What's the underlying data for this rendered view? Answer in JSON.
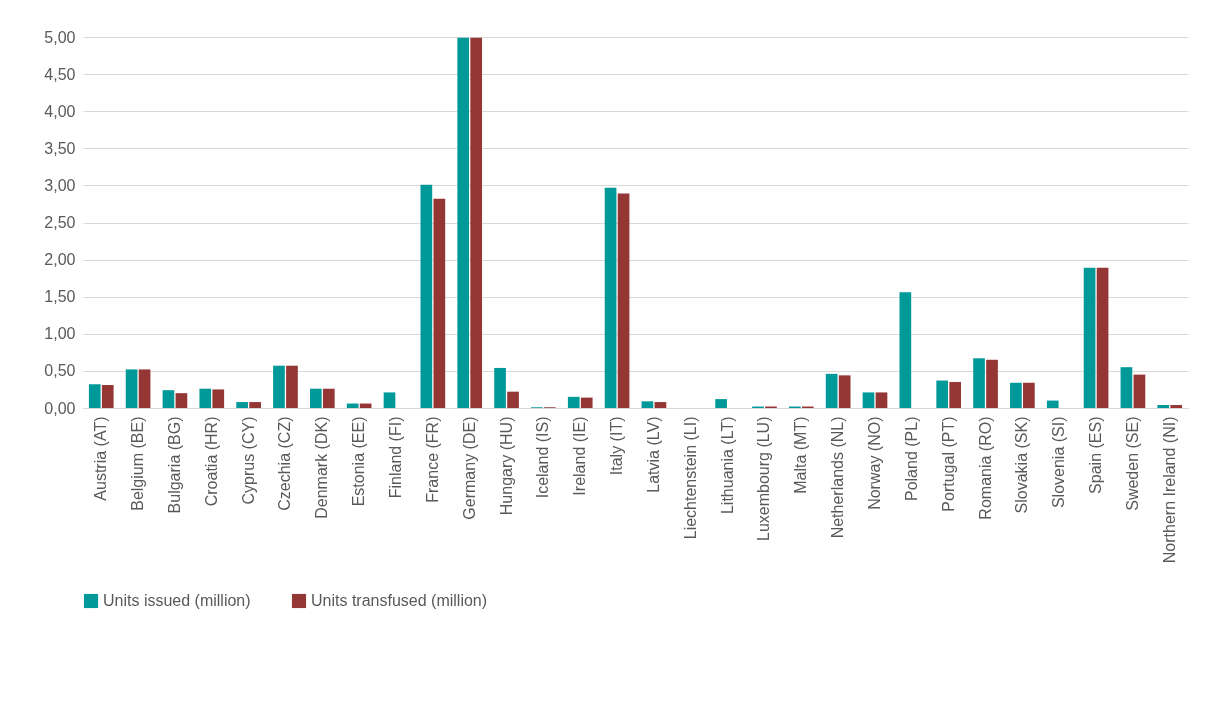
{
  "chart_data": {
    "type": "bar",
    "categories": [
      "Austria (AT)",
      "Belgium (BE)",
      "Bulgaria (BG)",
      "Croatia (HR)",
      "Cyprus (CY)",
      "Czechia (CZ)",
      "Denmark (DK)",
      "Estonia (EE)",
      "Finland (FI)",
      "France (FR)",
      "Germany (DE)",
      "Hungary (HU)",
      "Iceland (IS)",
      "Ireland (IE)",
      "Italy (IT)",
      "Latvia (LV)",
      "Liechtenstein (LI)",
      "Lithuania (LT)",
      "Luxembourg (LU)",
      "Malta (MT)",
      "Netherlands (NL)",
      "Norway (NO)",
      "Poland (PL)",
      "Portugal (PT)",
      "Romania (RO)",
      "Slovakia (SK)",
      "Slovenia (SI)",
      "Spain (ES)",
      "Sweden (SE)",
      "Northern Ireland (NI)"
    ],
    "series": [
      {
        "name": "Units issued (million)",
        "color": "#009999",
        "values": [
          0.32,
          0.52,
          0.24,
          0.26,
          0.08,
          0.57,
          0.26,
          0.06,
          0.21,
          3.01,
          4.99,
          0.54,
          0.01,
          0.15,
          2.97,
          0.09,
          null,
          0.12,
          0.02,
          0.02,
          0.46,
          0.21,
          1.56,
          0.37,
          0.67,
          0.34,
          0.1,
          1.89,
          0.55,
          0.04
        ]
      },
      {
        "name": "Units transfused (million)",
        "color": "#943634",
        "values": [
          0.31,
          0.52,
          0.2,
          0.25,
          0.08,
          0.57,
          0.26,
          0.06,
          null,
          2.82,
          4.99,
          0.22,
          0.01,
          0.14,
          2.89,
          0.08,
          null,
          null,
          0.02,
          0.02,
          0.44,
          0.21,
          null,
          0.35,
          0.65,
          0.34,
          null,
          1.89,
          0.45,
          0.04
        ]
      }
    ],
    "ylim": [
      0,
      5
    ],
    "yticks": [
      {
        "value": 0,
        "label": "0,00"
      },
      {
        "value": 0.5,
        "label": "0,50"
      },
      {
        "value": 1,
        "label": "1,00"
      },
      {
        "value": 1.5,
        "label": "1,50"
      },
      {
        "value": 2,
        "label": "2,00"
      },
      {
        "value": 2.5,
        "label": "2,50"
      },
      {
        "value": 3,
        "label": "3,00"
      },
      {
        "value": 3.5,
        "label": "3,50"
      },
      {
        "value": 4,
        "label": "4,00"
      },
      {
        "value": 4.5,
        "label": "4,50"
      },
      {
        "value": 5,
        "label": "5,00"
      }
    ],
    "grid": "y",
    "legend": "bottom"
  }
}
